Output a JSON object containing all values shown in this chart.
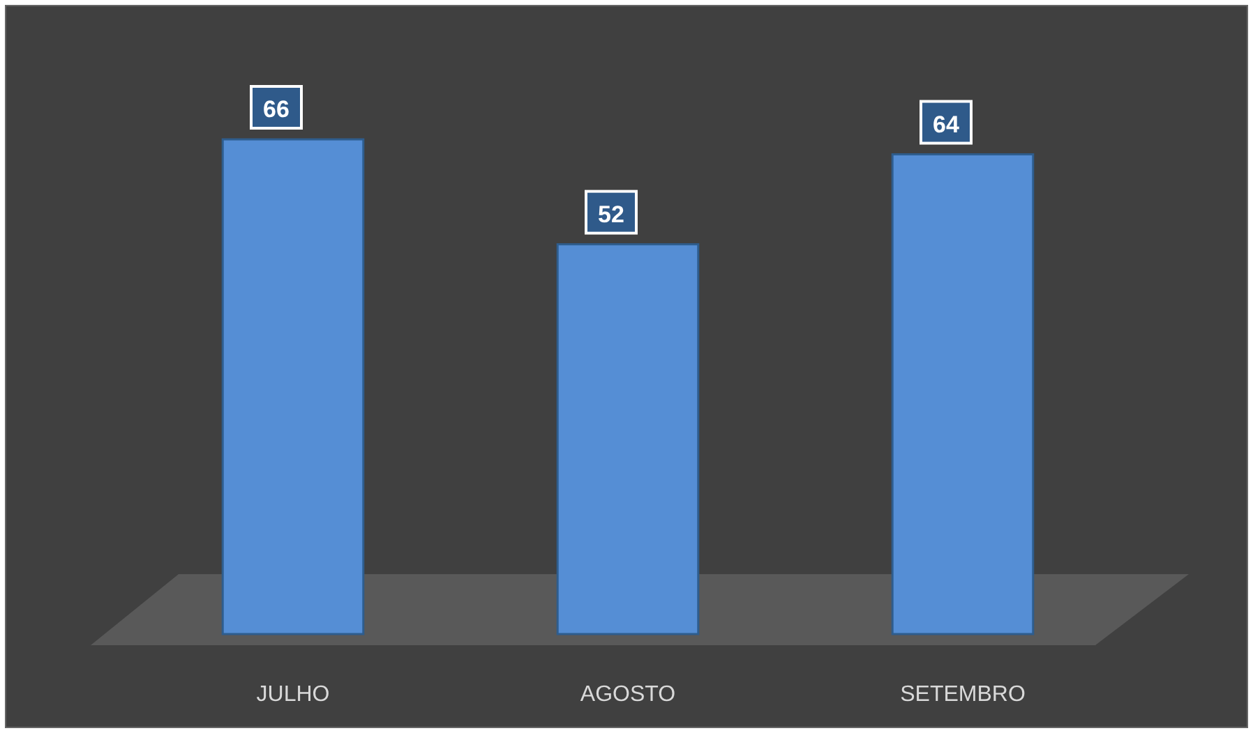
{
  "chart_data": {
    "type": "bar",
    "categories": [
      "JULHO",
      "AGOSTO",
      "SETEMBRO"
    ],
    "values": [
      66,
      52,
      64
    ],
    "color": "#558ed5",
    "data_labels": true
  }
}
